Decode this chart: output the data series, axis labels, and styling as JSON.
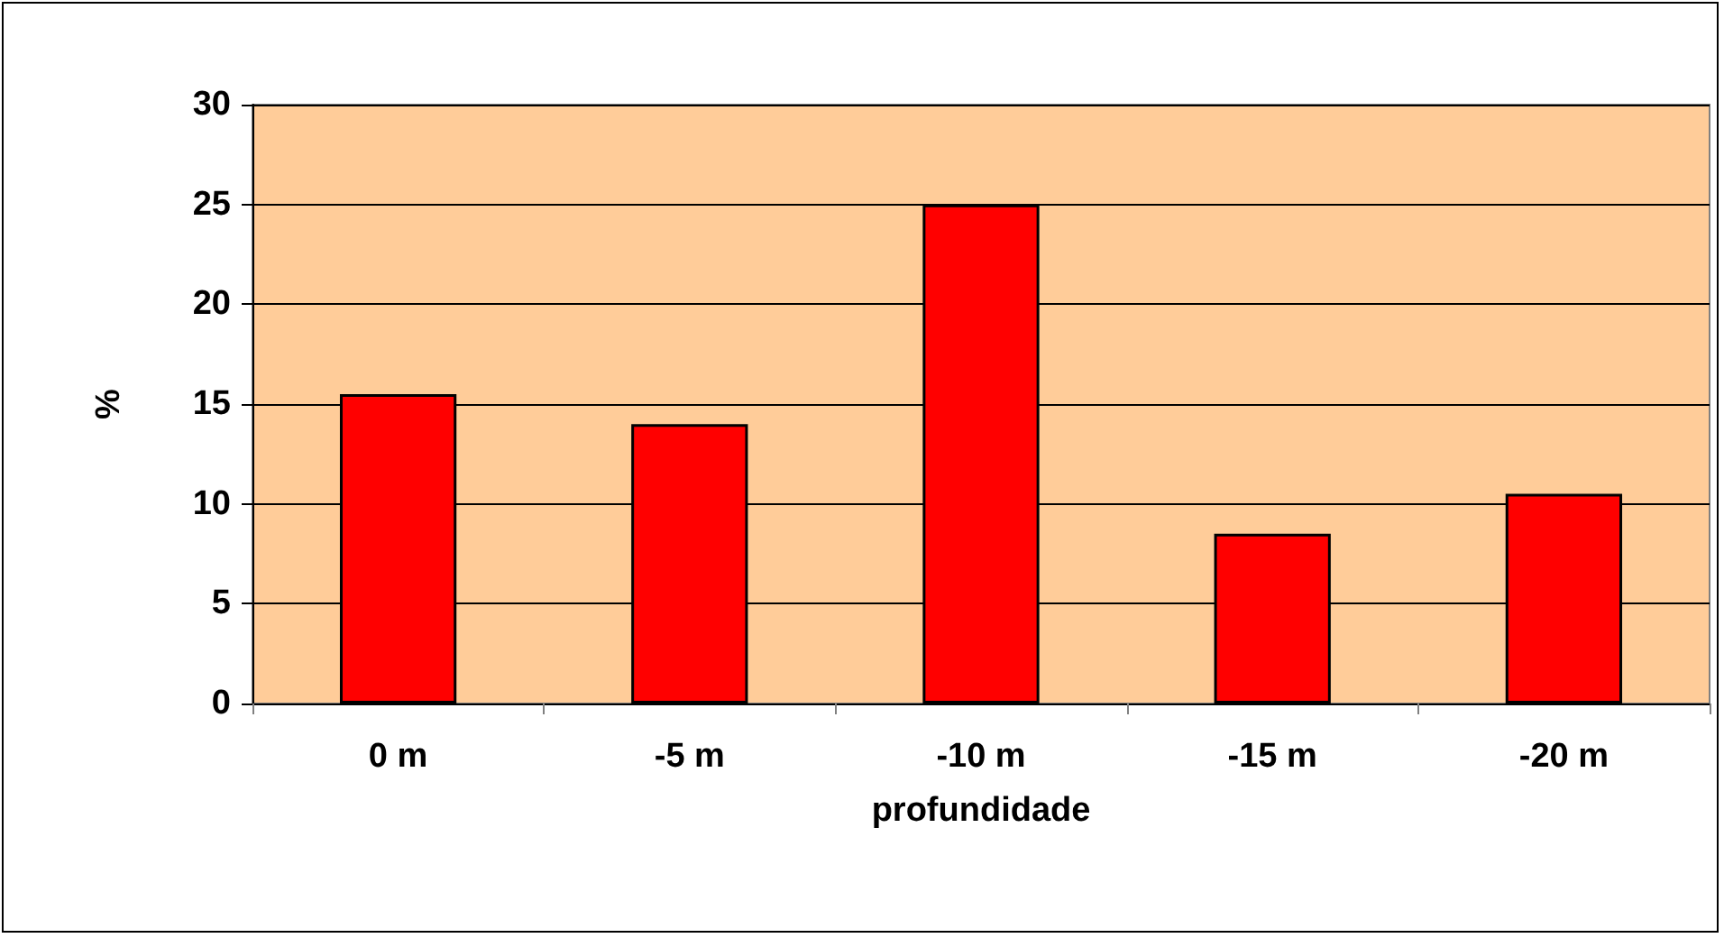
{
  "chart_data": {
    "type": "bar",
    "xlabel": "profundidade",
    "ylabel": "%",
    "categories": [
      "0 m",
      "-5 m",
      "-10 m",
      "-15 m",
      "-20 m"
    ],
    "values": [
      15.5,
      14,
      25,
      8.5,
      10.5
    ],
    "color": "#ff0000",
    "ylim": [
      0,
      30
    ],
    "yticks": [
      0,
      5,
      10,
      15,
      20,
      25,
      30
    ],
    "grid": "y"
  }
}
